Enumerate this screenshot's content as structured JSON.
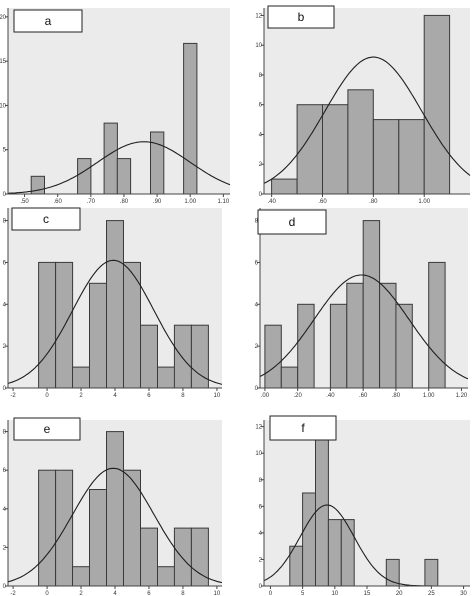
{
  "chart_data": [
    {
      "id": "a",
      "type": "bar",
      "panel_label": "a",
      "x_ticks": [
        ".50",
        ".60",
        ".70",
        ".80",
        ".90",
        "1.00",
        "1.10"
      ],
      "y_ticks": [
        "0",
        "5",
        "10",
        "15",
        "20"
      ],
      "xlim": [
        0.45,
        1.12
      ],
      "ylim": [
        0,
        21
      ],
      "bins": [
        {
          "x0": 0.52,
          "x1": 0.56,
          "value": 2
        },
        {
          "x0": 0.66,
          "x1": 0.7,
          "value": 4
        },
        {
          "x0": 0.74,
          "x1": 0.78,
          "value": 8
        },
        {
          "x0": 0.78,
          "x1": 0.82,
          "value": 4
        },
        {
          "x0": 0.88,
          "x1": 0.92,
          "value": 7
        },
        {
          "x0": 0.98,
          "x1": 1.02,
          "value": 17
        }
      ],
      "normal_curve": {
        "mean": 0.86,
        "sd": 0.14,
        "peak": 5.9
      }
    },
    {
      "id": "b",
      "type": "bar",
      "panel_label": "b",
      "x_ticks": [
        ".40",
        ".60",
        ".80",
        "1.00"
      ],
      "y_ticks": [
        "0",
        "2",
        "4",
        "6",
        "8",
        "10",
        "12"
      ],
      "xlim": [
        0.37,
        1.18
      ],
      "ylim": [
        0,
        12.5
      ],
      "bins": [
        {
          "x0": 0.4,
          "x1": 0.5,
          "value": 1
        },
        {
          "x0": 0.5,
          "x1": 0.6,
          "value": 6
        },
        {
          "x0": 0.6,
          "x1": 0.7,
          "value": 6
        },
        {
          "x0": 0.7,
          "x1": 0.8,
          "value": 7
        },
        {
          "x0": 0.8,
          "x1": 0.9,
          "value": 5
        },
        {
          "x0": 0.9,
          "x1": 1.0,
          "value": 5
        },
        {
          "x0": 1.0,
          "x1": 1.1,
          "value": 12
        }
      ],
      "normal_curve": {
        "mean": 0.8,
        "sd": 0.19,
        "peak": 9.2
      }
    },
    {
      "id": "c",
      "type": "bar",
      "panel_label": "c",
      "x_ticks": [
        "-2",
        "0",
        "2",
        "4",
        "6",
        "8",
        "10"
      ],
      "y_ticks": [
        "0",
        "2",
        "4",
        "6",
        "8"
      ],
      "xlim": [
        -2.3,
        10.3
      ],
      "ylim": [
        0,
        8.6
      ],
      "bins": [
        {
          "x0": -0.5,
          "x1": 0.5,
          "value": 6
        },
        {
          "x0": 0.5,
          "x1": 1.5,
          "value": 6
        },
        {
          "x0": 1.5,
          "x1": 2.5,
          "value": 1
        },
        {
          "x0": 2.5,
          "x1": 3.5,
          "value": 5
        },
        {
          "x0": 3.5,
          "x1": 4.5,
          "value": 8
        },
        {
          "x0": 4.5,
          "x1": 5.5,
          "value": 6
        },
        {
          "x0": 5.5,
          "x1": 6.5,
          "value": 3
        },
        {
          "x0": 6.5,
          "x1": 7.5,
          "value": 1
        },
        {
          "x0": 7.5,
          "x1": 8.5,
          "value": 3
        },
        {
          "x0": 8.5,
          "x1": 9.5,
          "value": 3
        }
      ],
      "normal_curve": {
        "mean": 3.9,
        "sd": 2.4,
        "peak": 6.1
      }
    },
    {
      "id": "d",
      "type": "bar",
      "panel_label": "d",
      "x_ticks": [
        ".00",
        ".20",
        ".40",
        ".60",
        ".80",
        "1.00",
        "1.20"
      ],
      "y_ticks": [
        "0",
        "2",
        "4",
        "6",
        "8"
      ],
      "xlim": [
        -0.03,
        1.24
      ],
      "ylim": [
        0,
        8.6
      ],
      "bins": [
        {
          "x0": 0.0,
          "x1": 0.1,
          "value": 3
        },
        {
          "x0": 0.1,
          "x1": 0.2,
          "value": 1
        },
        {
          "x0": 0.2,
          "x1": 0.3,
          "value": 4
        },
        {
          "x0": 0.4,
          "x1": 0.5,
          "value": 4
        },
        {
          "x0": 0.5,
          "x1": 0.6,
          "value": 5
        },
        {
          "x0": 0.6,
          "x1": 0.7,
          "value": 8
        },
        {
          "x0": 0.7,
          "x1": 0.8,
          "value": 5
        },
        {
          "x0": 0.8,
          "x1": 0.9,
          "value": 4
        },
        {
          "x0": 1.0,
          "x1": 1.1,
          "value": 6
        }
      ],
      "normal_curve": {
        "mean": 0.59,
        "sd": 0.29,
        "peak": 5.4
      }
    },
    {
      "id": "e",
      "type": "bar",
      "panel_label": "e",
      "x_ticks": [
        "-2",
        "0",
        "2",
        "4",
        "6",
        "8",
        "10"
      ],
      "y_ticks": [
        "0",
        "2",
        "4",
        "6",
        "8"
      ],
      "xlim": [
        -2.3,
        10.3
      ],
      "ylim": [
        0,
        8.6
      ],
      "bins": [
        {
          "x0": -0.5,
          "x1": 0.5,
          "value": 6
        },
        {
          "x0": 0.5,
          "x1": 1.5,
          "value": 6
        },
        {
          "x0": 1.5,
          "x1": 2.5,
          "value": 1
        },
        {
          "x0": 2.5,
          "x1": 3.5,
          "value": 5
        },
        {
          "x0": 3.5,
          "x1": 4.5,
          "value": 8
        },
        {
          "x0": 4.5,
          "x1": 5.5,
          "value": 6
        },
        {
          "x0": 5.5,
          "x1": 6.5,
          "value": 3
        },
        {
          "x0": 6.5,
          "x1": 7.5,
          "value": 1
        },
        {
          "x0": 7.5,
          "x1": 8.5,
          "value": 3
        },
        {
          "x0": 8.5,
          "x1": 9.5,
          "value": 3
        }
      ],
      "normal_curve": {
        "mean": 3.9,
        "sd": 2.4,
        "peak": 6.1
      }
    },
    {
      "id": "f",
      "type": "bar",
      "panel_label": "f",
      "x_ticks": [
        "0",
        "5",
        "10",
        "15",
        "20",
        "25",
        "30"
      ],
      "y_ticks": [
        "0",
        "2",
        "4",
        "6",
        "8",
        "10",
        "12"
      ],
      "xlim": [
        -1,
        31
      ],
      "ylim": [
        0,
        12.5
      ],
      "bins": [
        {
          "x0": 3.0,
          "x1": 5.0,
          "value": 3
        },
        {
          "x0": 5.0,
          "x1": 7.0,
          "value": 7
        },
        {
          "x0": 7.0,
          "x1": 9.0,
          "value": 11
        },
        {
          "x0": 9.0,
          "x1": 11.0,
          "value": 5
        },
        {
          "x0": 11.0,
          "x1": 13.0,
          "value": 5
        },
        {
          "x0": 18.0,
          "x1": 20.0,
          "value": 2
        },
        {
          "x0": 24.0,
          "x1": 26.0,
          "value": 2
        }
      ],
      "normal_curve": {
        "mean": 8.8,
        "sd": 4.2,
        "peak": 6.1
      }
    }
  ]
}
